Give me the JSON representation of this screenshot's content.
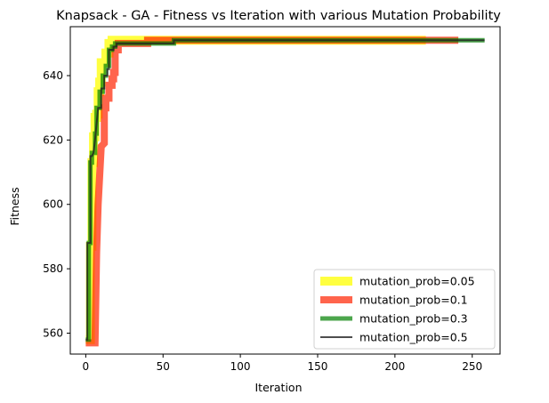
{
  "chart_data": {
    "type": "line",
    "title": "Knapsack - GA - Fitness vs Iteration with various Mutation Probability",
    "xlabel": "Iteration",
    "ylabel": "Fitness",
    "xlim": [
      -10,
      268
    ],
    "ylim": [
      553.5,
      655.2
    ],
    "xticks": [
      0,
      50,
      100,
      150,
      200,
      250
    ],
    "yticks": [
      560,
      580,
      600,
      620,
      640
    ],
    "grid": false,
    "legend_position": "lower-right",
    "series": [
      {
        "name": "mutation_prob=0.05",
        "color": "#ffff00",
        "alpha": 0.75,
        "width": 10,
        "points": [
          [
            0,
            558
          ],
          [
            3,
            558
          ],
          [
            3,
            587
          ],
          [
            4,
            587
          ],
          [
            4,
            613
          ],
          [
            5,
            613
          ],
          [
            5,
            621
          ],
          [
            6,
            621
          ],
          [
            6,
            627
          ],
          [
            7,
            627
          ],
          [
            7,
            628
          ],
          [
            8,
            628
          ],
          [
            8,
            635
          ],
          [
            9,
            635
          ],
          [
            9,
            638
          ],
          [
            10,
            638
          ],
          [
            10,
            644
          ],
          [
            13,
            644
          ],
          [
            13,
            647
          ],
          [
            15,
            647
          ],
          [
            15,
            650
          ],
          [
            17,
            650
          ],
          [
            17,
            651
          ],
          [
            20,
            651
          ],
          [
            20,
            651
          ],
          [
            220,
            651
          ]
        ]
      },
      {
        "name": "mutation_prob=0.1",
        "color": "#ff2200",
        "alpha": 0.7,
        "width": 8,
        "points": [
          [
            0,
            557
          ],
          [
            6,
            557
          ],
          [
            7,
            585
          ],
          [
            8,
            600
          ],
          [
            10,
            618
          ],
          [
            12,
            619
          ],
          [
            12,
            630
          ],
          [
            13,
            630
          ],
          [
            13,
            633
          ],
          [
            15,
            633
          ],
          [
            15,
            637
          ],
          [
            17,
            637
          ],
          [
            17,
            639
          ],
          [
            18,
            639
          ],
          [
            18,
            641
          ],
          [
            19,
            641
          ],
          [
            19,
            648
          ],
          [
            21,
            648
          ],
          [
            21,
            650
          ],
          [
            40,
            650
          ],
          [
            40,
            651
          ],
          [
            241,
            651
          ]
        ]
      },
      {
        "name": "mutation_prob=0.3",
        "color": "#008000",
        "alpha": 0.7,
        "width": 5,
        "points": [
          [
            0,
            558
          ],
          [
            2,
            558
          ],
          [
            2,
            588
          ],
          [
            3,
            588
          ],
          [
            3,
            613
          ],
          [
            4,
            613
          ],
          [
            4,
            616
          ],
          [
            6,
            616
          ],
          [
            6,
            622
          ],
          [
            7,
            622
          ],
          [
            7,
            630
          ],
          [
            9,
            630
          ],
          [
            9,
            635
          ],
          [
            11,
            635
          ],
          [
            11,
            640
          ],
          [
            13,
            640
          ],
          [
            13,
            643
          ],
          [
            15,
            643
          ],
          [
            15,
            648
          ],
          [
            17,
            648
          ],
          [
            17,
            649
          ],
          [
            19,
            649
          ],
          [
            19,
            650
          ],
          [
            57,
            650
          ],
          [
            57,
            651
          ],
          [
            258,
            651
          ]
        ]
      },
      {
        "name": "mutation_prob=0.5",
        "color": "#222222",
        "alpha": 0.8,
        "width": 2,
        "points": [
          [
            0,
            558
          ],
          [
            1,
            558
          ],
          [
            1,
            588
          ],
          [
            3,
            588
          ],
          [
            3,
            615
          ],
          [
            4,
            615
          ],
          [
            5,
            616
          ],
          [
            6,
            620
          ],
          [
            7,
            625
          ],
          [
            8,
            630
          ],
          [
            10,
            630
          ],
          [
            10,
            636
          ],
          [
            12,
            636
          ],
          [
            12,
            640
          ],
          [
            14,
            640
          ],
          [
            14,
            642
          ],
          [
            15,
            642
          ],
          [
            15,
            648
          ],
          [
            18,
            648
          ],
          [
            18,
            649
          ],
          [
            20,
            649
          ],
          [
            20,
            650
          ],
          [
            57,
            650
          ],
          [
            57,
            651
          ],
          [
            258,
            651
          ]
        ]
      }
    ]
  }
}
